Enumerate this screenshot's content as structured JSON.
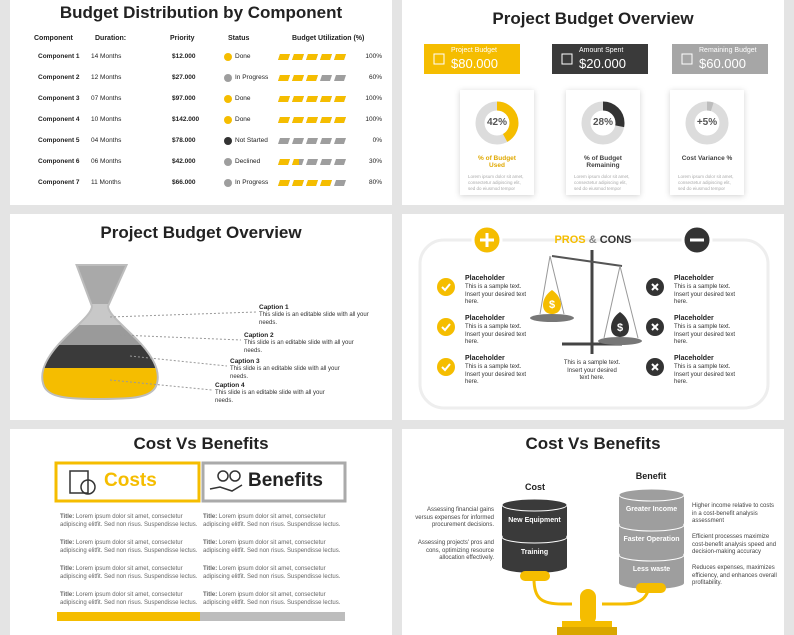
{
  "slide1": {
    "title": "Budget Distribution by Component",
    "headers": [
      "Component",
      "Duration:",
      "Priority",
      "Status",
      "Budget Utilization (%)"
    ],
    "rows": [
      {
        "component": "Component 1",
        "duration": "14 Months",
        "priority": "$12.000",
        "status": "Done",
        "status_color": "#f5bd00",
        "utilization": 100,
        "utilization_label": "100%"
      },
      {
        "component": "Component 2",
        "duration": "12 Months",
        "priority": "$27.000",
        "status": "In Progress",
        "status_color": "#9e9e9e",
        "utilization": 60,
        "utilization_label": "60%"
      },
      {
        "component": "Component 3",
        "duration": "07 Months",
        "priority": "$97.000",
        "status": "Done",
        "status_color": "#f5bd00",
        "utilization": 100,
        "utilization_label": "100%"
      },
      {
        "component": "Component 4",
        "duration": "10 Months",
        "priority": "$142.000",
        "status": "Done",
        "status_color": "#f5bd00",
        "utilization": 100,
        "utilization_label": "100%"
      },
      {
        "component": "Component 5",
        "duration": "04 Months",
        "priority": "$78.000",
        "status": "Not Started",
        "status_color": "#333333",
        "utilization": 0,
        "utilization_label": "0%"
      },
      {
        "component": "Component 6",
        "duration": "06 Months",
        "priority": "$42.000",
        "status": "Declined",
        "status_color": "#9e9e9e",
        "utilization": 30,
        "utilization_label": "30%"
      },
      {
        "component": "Component 7",
        "duration": "11 Months",
        "priority": "$66.000",
        "status": "In Progress",
        "status_color": "#9e9e9e",
        "utilization": 80,
        "utilization_label": "80%"
      }
    ]
  },
  "slide2": {
    "title": "Project Budget Overview",
    "boxes": [
      {
        "label": "Project Budget",
        "value": "$80.000",
        "color": "#f5bd00"
      },
      {
        "label": "Amount Spent",
        "value": "$20.000",
        "color": "#3a3a3a"
      },
      {
        "label": "Remaining Budget",
        "value": "$60.000",
        "color": "#a6a6a6"
      }
    ],
    "cards": [
      {
        "value": 42,
        "value_label": "42%",
        "label": "% of Budget Used",
        "text": "Lorem ipsum dolor sit amet, consectetur adipiscing elit, sed do eiusmod tempor",
        "color": "#f5bd00"
      },
      {
        "value": 28,
        "value_label": "28%",
        "label": "% of Budget Remaining",
        "text": "Lorem ipsum dolor sit amet, consectetur adipiscing elit, sed do eiusmod tempor",
        "color": "#333333"
      },
      {
        "value": 5,
        "value_label": "+5%",
        "label": "Cost Variance %",
        "text": "Lorem ipsum dolor sit amet, consectetur adipiscing elit, sed do eiusmod tempor",
        "color": "#bdbdbd"
      }
    ]
  },
  "slide3": {
    "title": "Project Budget Overview",
    "captions": [
      {
        "title": "Caption 1",
        "text": "This slide is an editable slide with all your needs."
      },
      {
        "title": "Caption 2",
        "text": "This slide is an editable slide with all your needs."
      },
      {
        "title": "Caption 3",
        "text": "This slide is an editable slide with all your needs."
      },
      {
        "title": "Caption 4",
        "text": "This slide is an editable slide with all your needs."
      }
    ]
  },
  "slide4": {
    "title": {
      "pros": "PROS",
      "and": "&",
      "cons": "CONS"
    },
    "pros": [
      {
        "title": "Placeholder",
        "text": "This is a sample text. Insert your desired text here."
      },
      {
        "title": "Placeholder",
        "text": "This is a sample text. Insert your desired text here."
      },
      {
        "title": "Placeholder",
        "text": "This is a sample text. Insert your desired text here."
      }
    ],
    "cons": [
      {
        "title": "Placeholder",
        "text": "This is a sample text. Insert your desired text here."
      },
      {
        "title": "Placeholder",
        "text": "This is a sample text. Insert your desired text here."
      },
      {
        "title": "Placeholder",
        "text": "This is a sample text. Insert your desired text here."
      }
    ],
    "center_text": "This is a sample text. Insert your desired text here."
  },
  "slide5": {
    "title": "Cost Vs Benefits",
    "costs": "Costs",
    "benefits": "Benefits",
    "cost_items": [
      {
        "title": "Title:",
        "text": "Lorem ipsum dolor sit amet, consectetur adipiscing elitfit. Sed non risus. Suspendisse lectus."
      },
      {
        "title": "Title:",
        "text": "Lorem ipsum dolor sit amet, consectetur adipiscing elitfit. Sed non risus. Suspendisse lectus."
      },
      {
        "title": "Title:",
        "text": "Lorem ipsum dolor sit amet, consectetur adipiscing elitfit. Sed non risus. Suspendisse lectus."
      },
      {
        "title": "Title:",
        "text": "Lorem ipsum dolor sit amet, consectetur adipiscing elitfit. Sed non risus. Suspendisse lectus."
      }
    ],
    "benefit_items": [
      {
        "title": "Title:",
        "text": "Lorem ipsum dolor sit amet, consectetur adipiscing elitfit. Sed non risus. Suspendisse lectus."
      },
      {
        "title": "Title:",
        "text": "Lorem ipsum dolor sit amet, consectetur adipiscing elitfit. Sed non risus. Suspendisse lectus."
      },
      {
        "title": "Title:",
        "text": "Lorem ipsum dolor sit amet, consectetur adipiscing elitfit. Sed non risus. Suspendisse lectus."
      },
      {
        "title": "Title:",
        "text": "Lorem ipsum dolor sit amet, consectetur adipiscing elitfit. Sed non risus. Suspendisse lectus."
      }
    ]
  },
  "slide6": {
    "title": "Cost Vs Benefits",
    "cost": "Cost",
    "benefit": "Benefit",
    "cost_layers": [
      "New Equipment",
      "Training"
    ],
    "benefit_layers": [
      "Greater Income",
      "Faster Operation",
      "Less waste"
    ],
    "cost_notes": [
      "Assessing financial gains versus expenses for informed procurement decisions.",
      "Assessing projects' pros and cons, optimizing resource allocation effectively."
    ],
    "benefit_notes": [
      "Higher income relative to costs in a cost-benefit analysis assessment",
      "Efficient processes maximize cost-benefit analysis speed and decision-making accuracy",
      "Reduces expenses, maximizes efficiency, and enhances overall profitability."
    ]
  }
}
